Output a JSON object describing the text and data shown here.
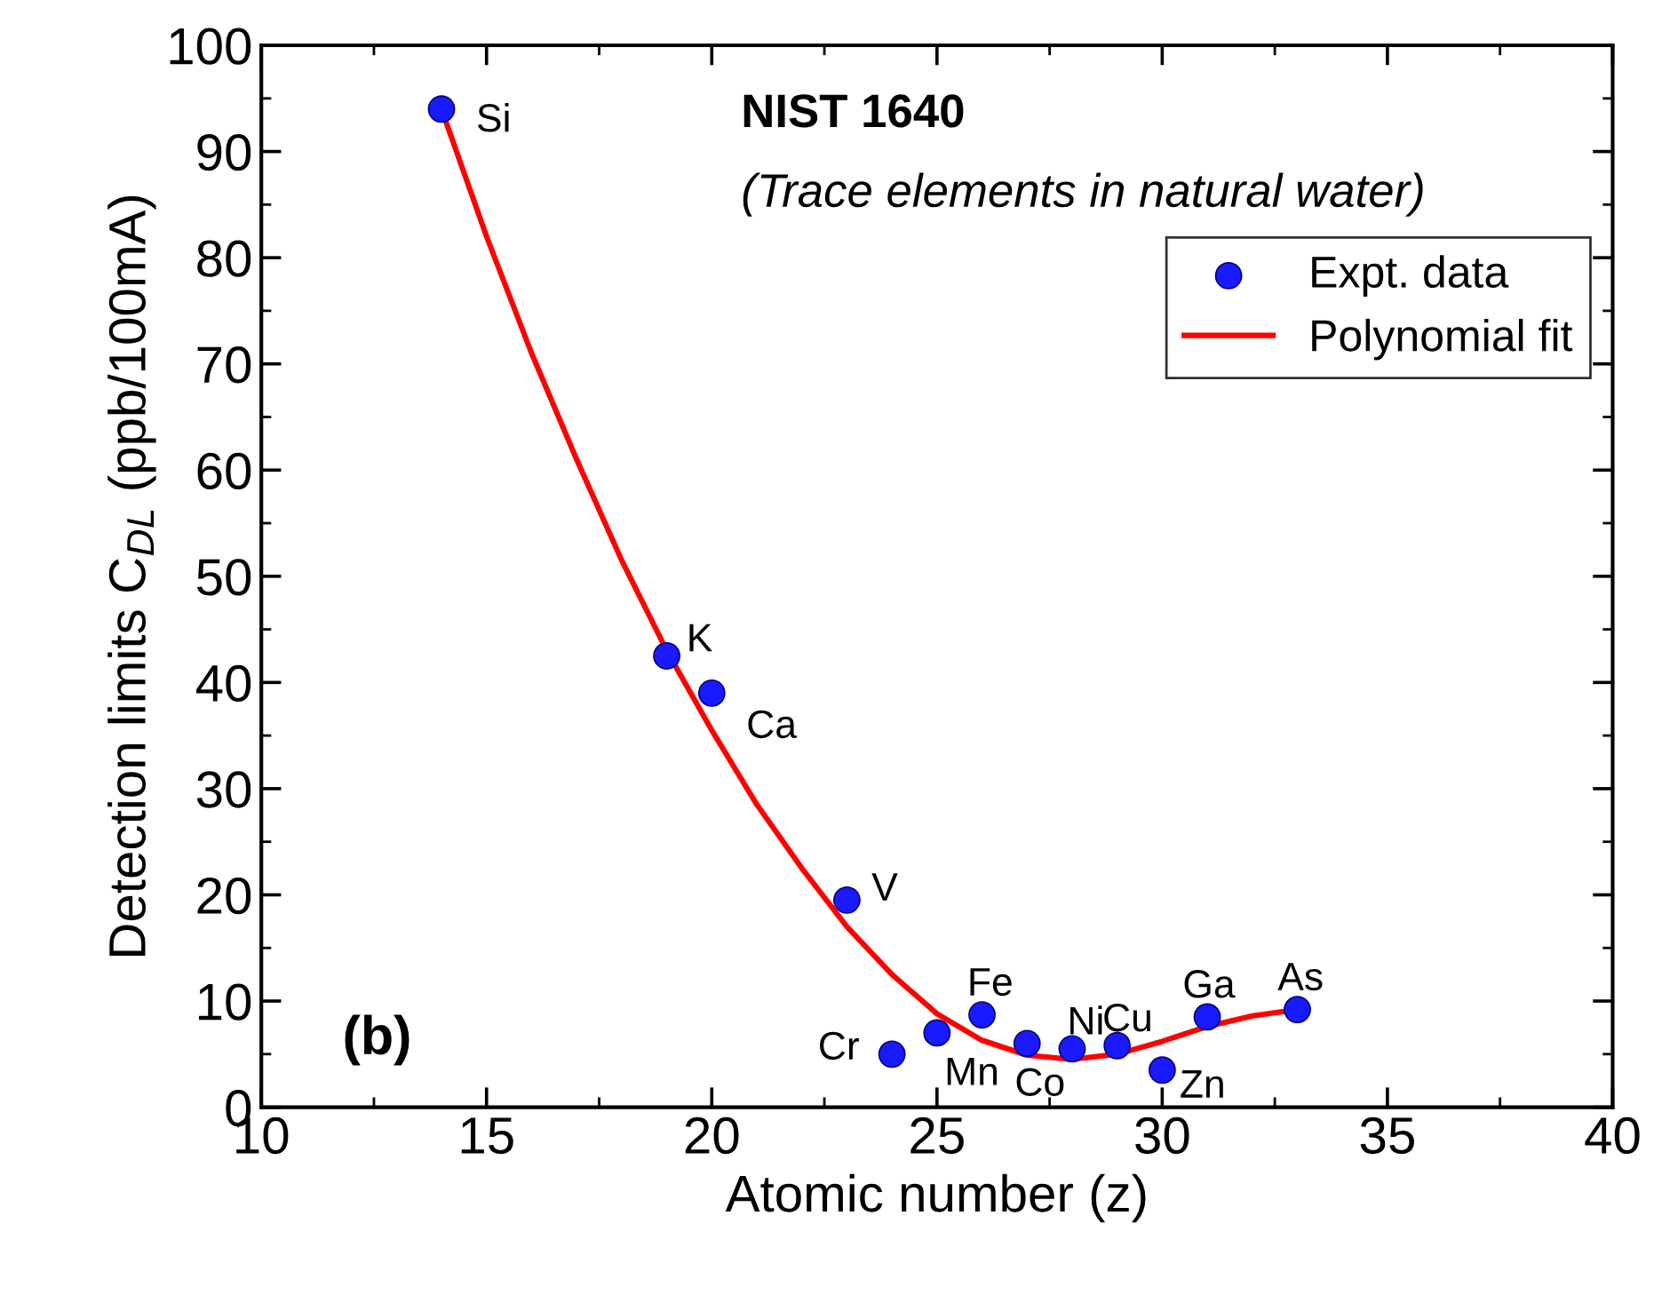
{
  "chart_data": {
    "type": "scatter",
    "title": "NIST 1640",
    "subtitle": "(Trace elements in natural water)",
    "xlabel": "Atomic number (z)",
    "ylabel": "Detection limits C$_{DL}$ (ppb/100mA)",
    "series": [
      {
        "name": "Expt. data",
        "color": "#1a1aff",
        "marker": "circle",
        "x": [
          14,
          19,
          20,
          23,
          24,
          25,
          26,
          27,
          28,
          29,
          30,
          31,
          33
        ],
        "values": [
          94,
          42.5,
          39,
          19.5,
          5,
          7,
          8.7,
          6,
          5.5,
          5.8,
          3.5,
          8.5,
          9.2
        ]
      },
      {
        "name": "Polynomial fit",
        "type": "line",
        "color": "#ff0000",
        "line_style": "solid",
        "x": [
          14,
          15,
          16,
          17,
          18,
          19,
          20,
          21,
          22,
          23,
          24,
          25,
          26,
          27,
          28,
          29,
          30,
          31,
          32,
          33
        ],
        "values": [
          94,
          82,
          71,
          61,
          51.5,
          43,
          35.5,
          28.5,
          22.5,
          17,
          12.5,
          8.8,
          6.3,
          4.9,
          4.5,
          5,
          6.2,
          7.6,
          8.6,
          9.2
        ]
      }
    ],
    "annotations": [
      {
        "text": "Si",
        "x": 14,
        "y": 94
      },
      {
        "text": "K",
        "x": 19,
        "y": 42.5
      },
      {
        "text": "Ca",
        "x": 20,
        "y": 39
      },
      {
        "text": "V",
        "x": 23,
        "y": 19.5
      },
      {
        "text": "Cr",
        "x": 24,
        "y": 5
      },
      {
        "text": "Mn",
        "x": 25,
        "y": 7
      },
      {
        "text": "Fe",
        "x": 26,
        "y": 8.7
      },
      {
        "text": "Co",
        "x": 27,
        "y": 6
      },
      {
        "text": "Ni",
        "x": 28,
        "y": 5.5
      },
      {
        "text": "Cu",
        "x": 29,
        "y": 5.8
      },
      {
        "text": "Zn",
        "x": 30,
        "y": 3.5
      },
      {
        "text": "Ga",
        "x": 31,
        "y": 8.5
      },
      {
        "text": "As",
        "x": 33,
        "y": 9.2
      },
      "(b)"
    ],
    "xlim": [
      10,
      40
    ],
    "ylim": [
      0,
      100
    ],
    "xticks": [
      10,
      15,
      20,
      25,
      30,
      35,
      40
    ],
    "yticks": [
      0,
      10,
      20,
      30,
      40,
      50,
      60,
      70,
      80,
      90,
      100
    ],
    "grid": false,
    "legend": "top right"
  }
}
